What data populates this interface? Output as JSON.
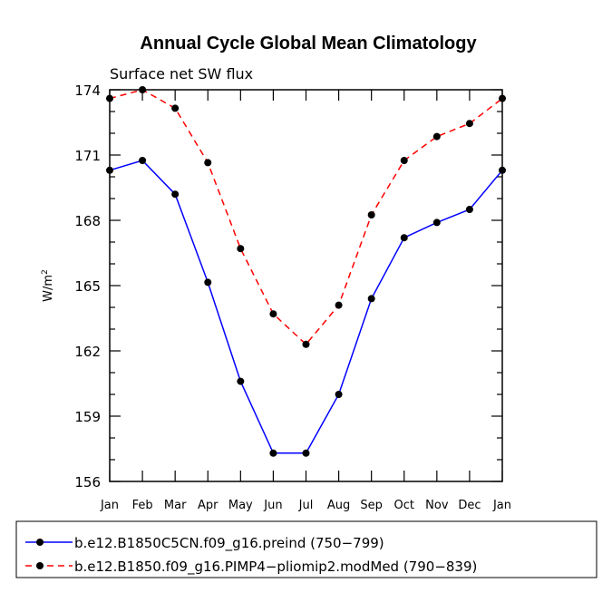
{
  "chart_data": {
    "type": "line",
    "title": "Annual Cycle Global Mean Climatology",
    "subtitle": "Surface net SW flux",
    "ylabel_base": "W/m",
    "ylabel_sup": "2",
    "xlabel": "",
    "categories": [
      "Jan",
      "Feb",
      "Mar",
      "Apr",
      "May",
      "Jun",
      "Jul",
      "Aug",
      "Sep",
      "Oct",
      "Nov",
      "Dec",
      "Jan"
    ],
    "ylim": [
      156,
      174
    ],
    "yticks": [
      "174",
      "171",
      "168",
      "165",
      "162",
      "159",
      "156"
    ],
    "series": [
      {
        "name": "b.e12.B1850C5CN.f09_g16.preind (750−799)",
        "color": "#0000ff",
        "dash": "solid",
        "values": [
          170.3,
          170.75,
          169.2,
          165.15,
          160.6,
          157.3,
          157.3,
          160.0,
          164.4,
          167.2,
          167.9,
          168.5,
          170.3
        ]
      },
      {
        "name": "b.e12.B1850.f09_g16.PIMP4−pliomip2.modMed (790−839)",
        "color": "#ff0000",
        "dash": "dashed",
        "values": [
          173.6,
          174.0,
          173.15,
          170.65,
          166.7,
          163.7,
          162.3,
          164.1,
          168.25,
          170.75,
          171.85,
          172.45,
          173.6
        ]
      }
    ]
  }
}
